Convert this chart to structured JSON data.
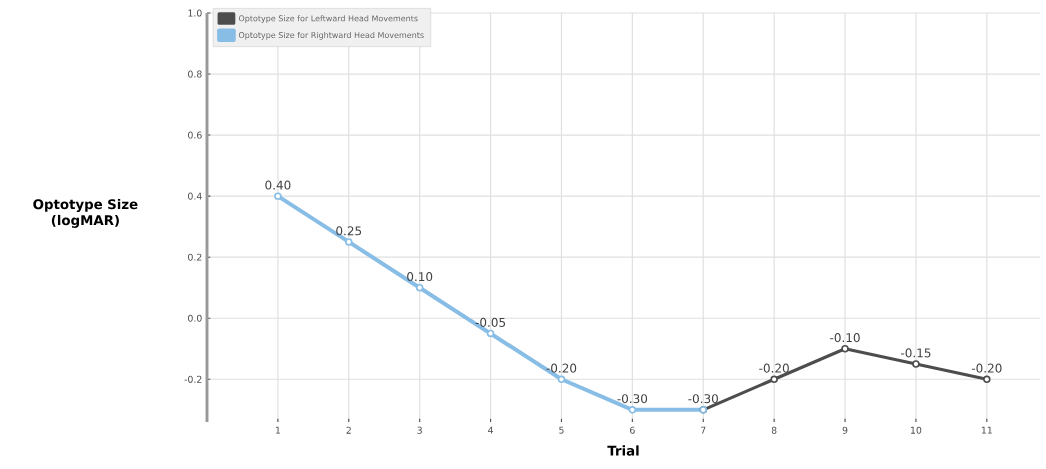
{
  "chart_data": {
    "type": "line",
    "xlabel": "Trial",
    "ylabel": "Optotype Size (logMAR)",
    "xlim": [
      0,
      11.75
    ],
    "xticks": [
      1,
      2,
      3,
      4,
      5,
      6,
      7,
      8,
      9,
      10,
      11
    ],
    "ylim": [
      -0.34,
      1.0
    ],
    "yticks": [
      {
        "value": 1.0,
        "label": "1.0"
      },
      {
        "value": 0.8,
        "label": "0.8"
      },
      {
        "value": 0.6,
        "label": "0.6"
      },
      {
        "value": 0.4,
        "label": "0.4"
      },
      {
        "value": 0.2,
        "label": "0.2"
      },
      {
        "value": 0.0,
        "label": "0.0"
      },
      {
        "value": -0.2,
        "label": "-0.2"
      }
    ],
    "grid": true,
    "legend": "top left",
    "marker": "circle",
    "line_style": "solid",
    "series": [
      {
        "name": "Optotype Size for Leftward Head Movements",
        "color": "#4d4d4d",
        "x": [
          7,
          8,
          9,
          10,
          11
        ],
        "values": [
          -0.3,
          -0.2,
          -0.1,
          -0.15,
          -0.2
        ],
        "value_labels": [
          null,
          "-0.20",
          "-0.10",
          "-0.15",
          "-0.20"
        ]
      },
      {
        "name": "Optotype Size for Rightward Head Movements",
        "color": "#88bde6",
        "x": [
          1,
          2,
          3,
          4,
          5,
          6,
          7
        ],
        "values": [
          0.4,
          0.25,
          0.1,
          -0.05,
          -0.2,
          -0.3,
          -0.3
        ],
        "value_labels": [
          "0.40",
          "0.25",
          "0.10",
          "-0.05",
          "-0.20",
          "-0.30",
          "-0.30"
        ]
      }
    ]
  }
}
